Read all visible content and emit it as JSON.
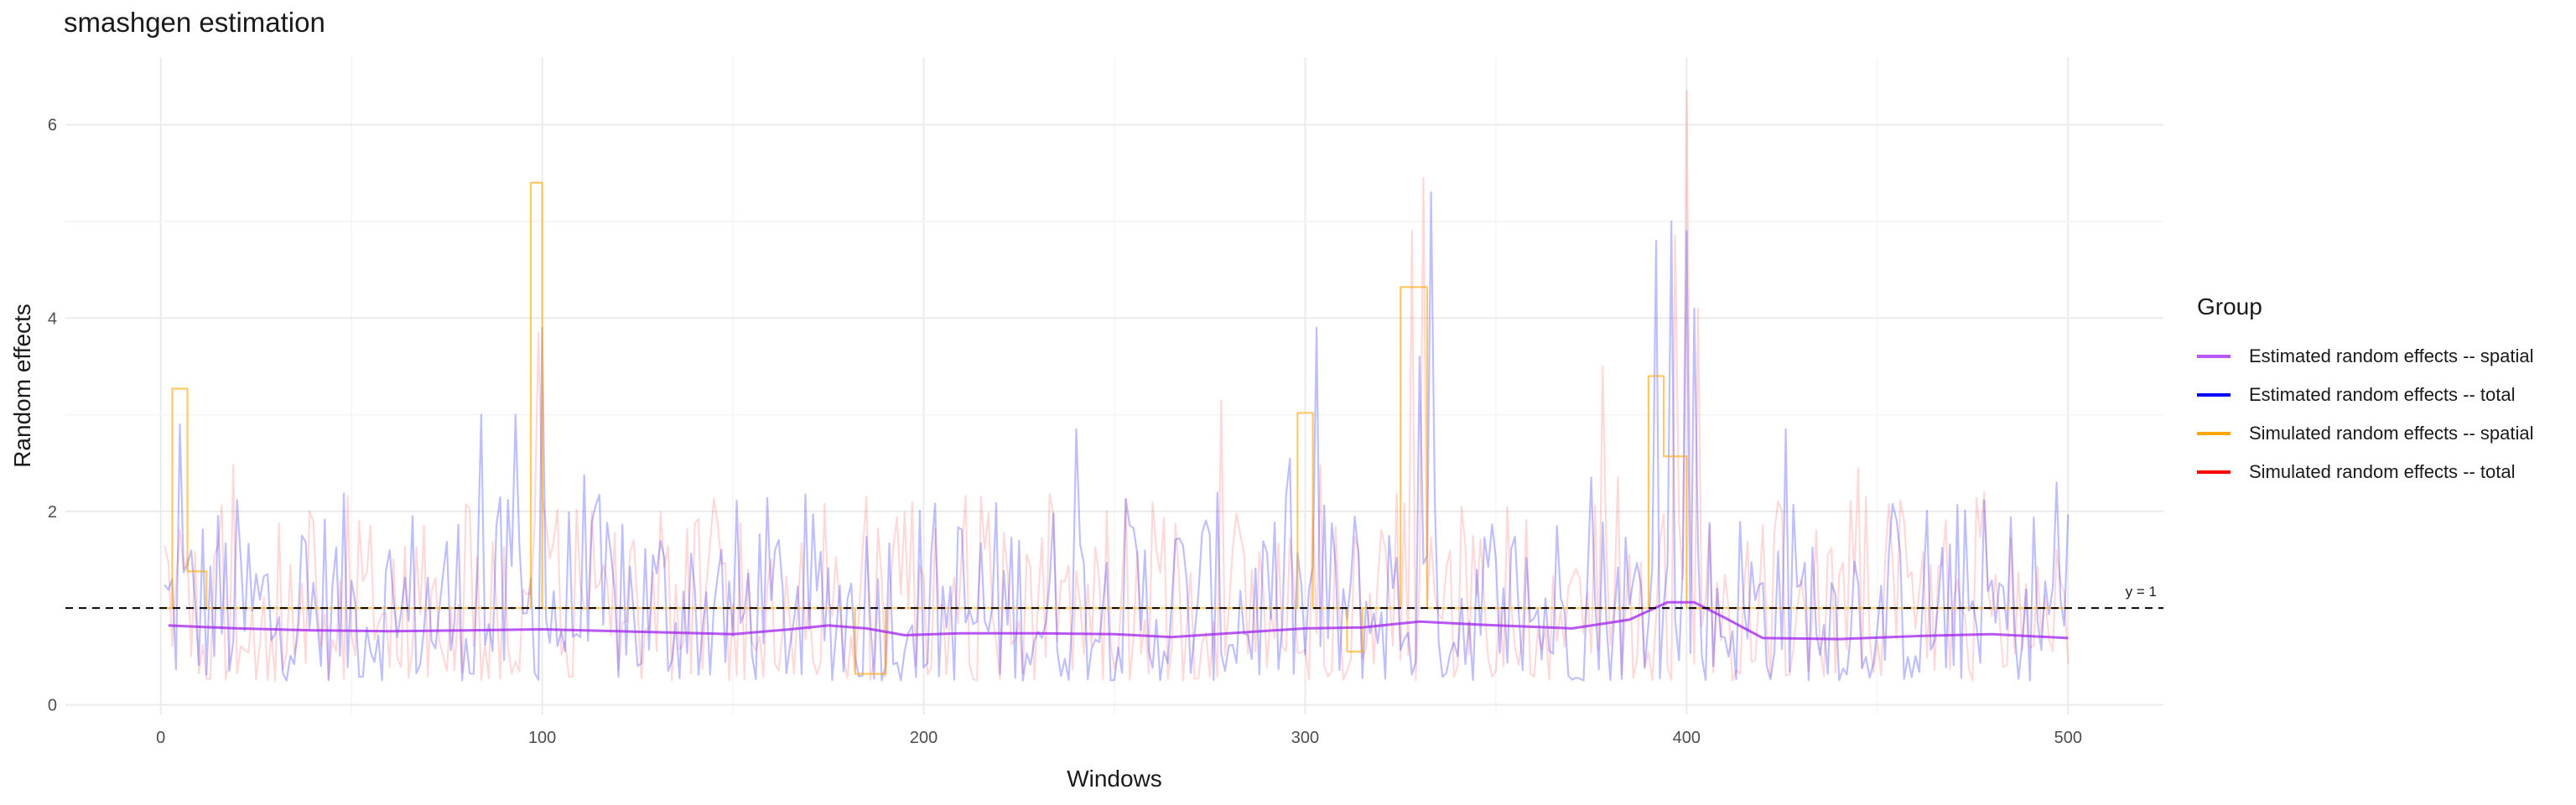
{
  "chart_data": {
    "type": "line",
    "title": "smashgen estimation",
    "xlabel": "Windows",
    "ylabel": "Random effects",
    "xlim": [
      -25,
      525
    ],
    "ylim": [
      -0.1,
      6.7
    ],
    "x_ticks": [
      0,
      100,
      200,
      300,
      400,
      500
    ],
    "y_ticks": [
      0,
      2,
      4,
      6
    ],
    "grid": true,
    "legend_position": "right",
    "legend_title": "Group",
    "reference_line": {
      "y": 1,
      "label": "y = 1",
      "style": "dashed",
      "color": "#000000"
    },
    "series": [
      {
        "name": "Estimated random effects -- spatial",
        "color": "#a020f0",
        "opacity": 0.75,
        "kind": "smooth",
        "points": [
          [
            2,
            0.82
          ],
          [
            20,
            0.79
          ],
          [
            40,
            0.77
          ],
          [
            60,
            0.76
          ],
          [
            80,
            0.77
          ],
          [
            100,
            0.78
          ],
          [
            120,
            0.76
          ],
          [
            150,
            0.73
          ],
          [
            165,
            0.78
          ],
          [
            175,
            0.82
          ],
          [
            185,
            0.79
          ],
          [
            195,
            0.72
          ],
          [
            210,
            0.74
          ],
          [
            230,
            0.74
          ],
          [
            250,
            0.73
          ],
          [
            265,
            0.7
          ],
          [
            280,
            0.74
          ],
          [
            300,
            0.79
          ],
          [
            315,
            0.8
          ],
          [
            330,
            0.86
          ],
          [
            345,
            0.83
          ],
          [
            370,
            0.79
          ],
          [
            385,
            0.88
          ],
          [
            395,
            1.06
          ],
          [
            402,
            1.06
          ],
          [
            410,
            0.9
          ],
          [
            420,
            0.69
          ],
          [
            440,
            0.68
          ],
          [
            460,
            0.71
          ],
          [
            480,
            0.73
          ],
          [
            500,
            0.69
          ]
        ]
      },
      {
        "name": "Estimated random effects -- total",
        "color": "#0000ff",
        "opacity": 0.25,
        "kind": "noisy",
        "peaks": [
          [
            5,
            2.9
          ],
          [
            84,
            3.0
          ],
          [
            93,
            3.0
          ],
          [
            100,
            3.9
          ],
          [
            240,
            2.85
          ],
          [
            303,
            3.9
          ],
          [
            330,
            3.6
          ],
          [
            333,
            5.3
          ],
          [
            375,
            2.35
          ],
          [
            392,
            4.8
          ],
          [
            396,
            5.0
          ],
          [
            400,
            4.9
          ],
          [
            402,
            4.1
          ],
          [
            426,
            2.85
          ],
          [
            497,
            2.3
          ]
        ]
      },
      {
        "name": "Simulated random effects -- spatial",
        "color": "#ffa500",
        "opacity": 0.6,
        "kind": "step",
        "steps": [
          [
            0,
            1.0
          ],
          [
            3,
            3.27
          ],
          [
            7,
            1.38
          ],
          [
            12,
            1.0
          ],
          [
            97,
            5.4
          ],
          [
            100,
            1.0
          ],
          [
            182,
            0.32
          ],
          [
            190,
            1.0
          ],
          [
            298,
            3.02
          ],
          [
            302,
            1.0
          ],
          [
            311,
            0.55
          ],
          [
            315,
            1.0
          ],
          [
            325,
            4.32
          ],
          [
            332,
            1.0
          ],
          [
            390,
            3.4
          ],
          [
            394,
            2.57
          ],
          [
            400,
            1.0
          ],
          [
            501,
            1.0
          ]
        ]
      },
      {
        "name": "Simulated random effects -- total",
        "color": "#ff0000",
        "opacity": 0.15,
        "kind": "noisy",
        "peaks": [
          [
            99,
            3.85
          ],
          [
            197,
            2.1
          ],
          [
            215,
            2.15
          ],
          [
            278,
            3.15
          ],
          [
            328,
            4.9
          ],
          [
            331,
            5.45
          ],
          [
            353,
            2.05
          ],
          [
            378,
            3.5
          ],
          [
            397,
            4.85
          ],
          [
            400,
            6.35
          ],
          [
            403,
            4.1
          ],
          [
            445,
            2.45
          ],
          [
            478,
            2.2
          ],
          [
            497,
            1.6
          ]
        ]
      }
    ]
  }
}
